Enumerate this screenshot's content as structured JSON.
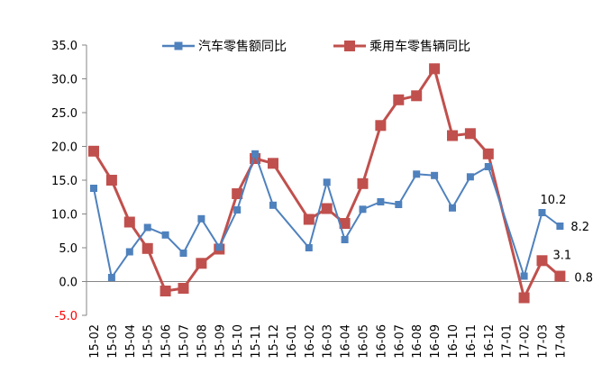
{
  "chart_data": {
    "type": "line",
    "title": "",
    "xlabel": "",
    "ylabel": "",
    "ylim": [
      -5,
      35
    ],
    "yticks": [
      "35.0",
      "30.0",
      "25.0",
      "20.0",
      "15.0",
      "10.0",
      "5.0",
      "0.0",
      "-5.0"
    ],
    "ytick_values": [
      35,
      30,
      25,
      20,
      15,
      10,
      5,
      0,
      -5
    ],
    "negative_tick_color": "#ff0000",
    "grid": false,
    "legend_position": "top-center",
    "categories": [
      "15-02",
      "15-03",
      "15-04",
      "15-05",
      "15-06",
      "15-07",
      "15-08",
      "15-09",
      "15-10",
      "15-11",
      "15-12",
      "16-01",
      "16-02",
      "16-03",
      "16-04",
      "16-05",
      "16-06",
      "16-07",
      "16-08",
      "16-09",
      "16-10",
      "16-11",
      "16-12",
      "17-01",
      "17-02",
      "17-03",
      "17-04"
    ],
    "series": [
      {
        "name": "汽车零售额同比",
        "color": "#4f81bd",
        "marker": "square-small",
        "values": [
          13.8,
          0.6,
          4.4,
          8.0,
          6.9,
          4.2,
          9.3,
          5.1,
          10.6,
          18.9,
          11.3,
          null,
          5.0,
          14.7,
          6.2,
          10.7,
          11.8,
          11.4,
          15.9,
          15.7,
          10.9,
          15.5,
          17.0,
          null,
          0.8,
          10.2,
          8.2
        ]
      },
      {
        "name": "乘用车零售辆同比",
        "color": "#c0504d",
        "marker": "square-large",
        "values": [
          19.3,
          15.0,
          8.8,
          4.9,
          -1.4,
          -1.0,
          2.7,
          4.8,
          13.0,
          18.2,
          17.5,
          null,
          9.2,
          10.8,
          8.6,
          14.5,
          23.1,
          26.9,
          27.5,
          31.5,
          21.6,
          21.9,
          18.9,
          null,
          -2.4,
          3.1,
          0.8
        ]
      }
    ],
    "annotations": [
      {
        "series": 0,
        "index": 25,
        "text": "10.2"
      },
      {
        "series": 0,
        "index": 26,
        "text": "8.2"
      },
      {
        "series": 1,
        "index": 25,
        "text": "3.1"
      },
      {
        "series": 1,
        "index": 26,
        "text": "0.8"
      }
    ]
  }
}
